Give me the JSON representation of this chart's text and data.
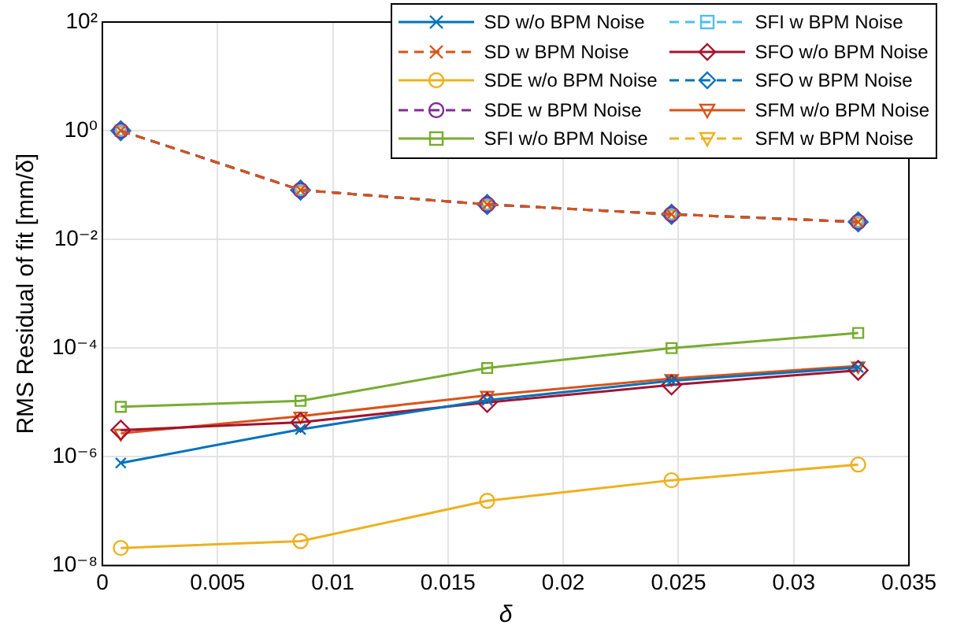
{
  "chart_data": {
    "type": "line",
    "xlabel": "δ",
    "ylabel": "RMS Residual of fit [mm/δ]",
    "log": "y",
    "grid": true,
    "legend": "top right",
    "xlim": [
      0,
      0.035
    ],
    "xticks": [
      0,
      0.005,
      0.01,
      0.015,
      0.02,
      0.025,
      0.03,
      0.035
    ],
    "ylim": [
      1e-08,
      100
    ],
    "yticks": [
      {
        "value": 1e-08,
        "label": "10⁻⁸"
      },
      {
        "value": 1e-06,
        "label": "10⁻⁶"
      },
      {
        "value": 0.0001,
        "label": "10⁻⁴"
      },
      {
        "value": 0.01,
        "label": "10⁻²"
      },
      {
        "value": 1,
        "label": "10⁰"
      },
      {
        "value": 100,
        "label": "10²"
      }
    ],
    "x": [
      0.0008,
      0.0086,
      0.0167,
      0.0247,
      0.0328
    ],
    "series": [
      {
        "name": "SD w/o BPM Noise",
        "color": "#0072bd",
        "marker": "cross",
        "line_style": "solid",
        "values": [
          7.7e-07,
          3.2e-06,
          1.1e-05,
          2.5e-05,
          4.4e-05
        ]
      },
      {
        "name": "SD w BPM Noise",
        "color": "#d95319",
        "marker": "cross",
        "line_style": "dashed",
        "values": [
          1.0,
          0.081,
          0.044,
          0.029,
          0.021
        ]
      },
      {
        "name": "SDE w/o BPM Noise",
        "color": "#edb120",
        "marker": "circle",
        "line_style": "solid",
        "values": [
          2.1e-08,
          2.8e-08,
          1.55e-07,
          3.7e-07,
          7.2e-07
        ]
      },
      {
        "name": "SDE w BPM Noise",
        "color": "#7e2f8e",
        "marker": "circle",
        "line_style": "dashed",
        "values": [
          1.0,
          0.081,
          0.044,
          0.029,
          0.021
        ]
      },
      {
        "name": "SFI w/o BPM Noise",
        "color": "#77ac30",
        "marker": "square",
        "line_style": "solid",
        "values": [
          8.3e-06,
          1.07e-05,
          4.3e-05,
          0.0001,
          0.00019
        ]
      },
      {
        "name": "SFI w BPM Noise",
        "color": "#4dbeee",
        "marker": "square",
        "line_style": "dashed",
        "values": [
          1.0,
          0.081,
          0.044,
          0.029,
          0.021
        ]
      },
      {
        "name": "SFO w/o BPM Noise",
        "color": "#a2142f",
        "marker": "diamond",
        "line_style": "solid",
        "values": [
          3.1e-06,
          4.3e-06,
          1e-05,
          2.1e-05,
          3.9e-05
        ]
      },
      {
        "name": "SFO w BPM Noise",
        "color": "#0072bd",
        "marker": "diamond",
        "line_style": "dashed",
        "values": [
          1.0,
          0.081,
          0.044,
          0.029,
          0.021
        ]
      },
      {
        "name": "SFM w/o BPM Noise",
        "color": "#d95319",
        "marker": "triangle",
        "line_style": "solid",
        "values": [
          2.7e-06,
          5.6e-06,
          1.35e-05,
          2.75e-05,
          4.7e-05
        ]
      },
      {
        "name": "SFM w BPM Noise",
        "color": "#edb120",
        "marker": "triangle",
        "line_style": "dashed",
        "values": [
          1.0,
          0.081,
          0.044,
          0.029,
          0.021
        ]
      }
    ]
  }
}
